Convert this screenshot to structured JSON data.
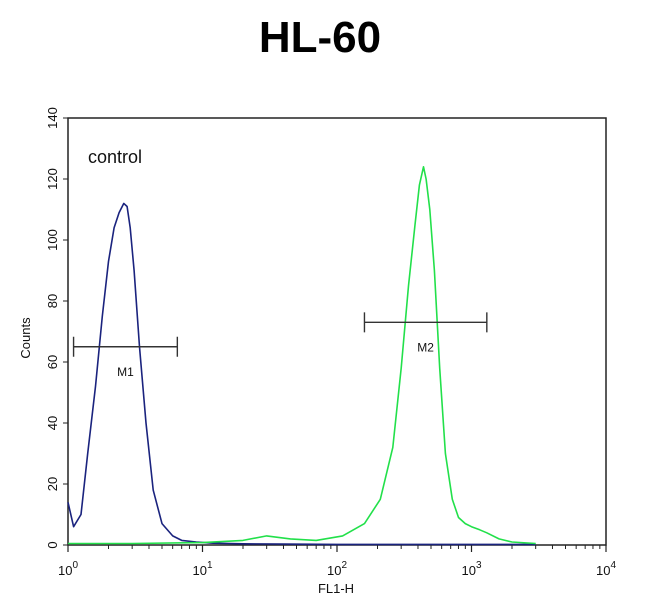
{
  "chart_data": {
    "type": "line",
    "title": "HL-60",
    "xlabel": "FL1-H",
    "ylabel": "Counts",
    "x_scale": "log",
    "xlim": [
      1,
      10000
    ],
    "ylim": [
      0,
      140
    ],
    "x_ticks": [
      {
        "value": 1,
        "base": "10",
        "exp": "0"
      },
      {
        "value": 10,
        "base": "10",
        "exp": "1"
      },
      {
        "value": 100,
        "base": "10",
        "exp": "2"
      },
      {
        "value": 1000,
        "base": "10",
        "exp": "3"
      },
      {
        "value": 10000,
        "base": "10",
        "exp": "4"
      }
    ],
    "y_ticks": [
      "0",
      "20",
      "40",
      "60",
      "80",
      "100",
      "120",
      "140"
    ],
    "annotation": "control",
    "grid": false,
    "series": [
      {
        "color": "#1a237e",
        "x": [
          1.0,
          1.1,
          1.25,
          1.4,
          1.6,
          1.8,
          2.0,
          2.2,
          2.4,
          2.6,
          2.75,
          2.9,
          3.1,
          3.4,
          3.8,
          4.3,
          5.0,
          6.0,
          7.0,
          9.0,
          12,
          20,
          40,
          100,
          300,
          1000,
          3000
        ],
        "y": [
          14,
          6,
          10,
          30,
          52,
          75,
          93,
          104,
          109,
          112,
          111,
          104,
          90,
          65,
          40,
          18,
          7,
          3,
          1.5,
          1,
          0.6,
          0.4,
          0.3,
          0.2,
          0.2,
          0.2,
          0.2
        ]
      },
      {
        "color": "#22e04a",
        "x": [
          1.0,
          3,
          10,
          20,
          30,
          45,
          70,
          110,
          160,
          210,
          260,
          300,
          340,
          380,
          410,
          440,
          460,
          490,
          530,
          580,
          640,
          720,
          800,
          900,
          1000,
          1150,
          1300,
          1600,
          2000,
          3000
        ],
        "y": [
          0.5,
          0.5,
          0.8,
          1.5,
          3,
          2,
          1.5,
          3,
          7,
          15,
          32,
          58,
          85,
          105,
          118,
          124,
          120,
          110,
          90,
          58,
          30,
          15,
          9,
          7,
          6,
          5,
          4,
          2,
          1,
          0.5
        ]
      }
    ],
    "markers": [
      {
        "label": "M1",
        "x_start": 1.1,
        "x_end": 6.5,
        "y": 65
      },
      {
        "label": "M2",
        "x_start": 160,
        "x_end": 1300,
        "y": 73
      }
    ]
  }
}
